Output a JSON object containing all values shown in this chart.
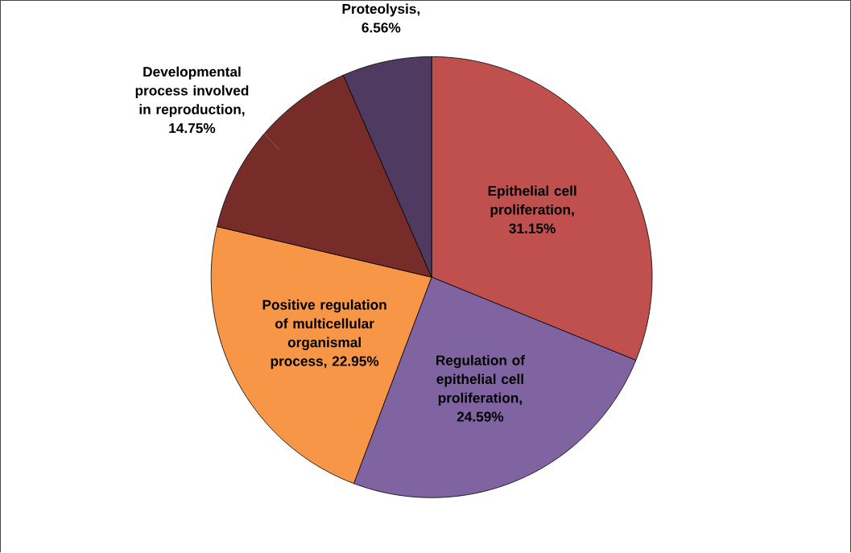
{
  "chart_data": {
    "type": "pie",
    "categories": [
      "Epithelial cell proliferation",
      "Regulation of epithelial cell proliferation",
      "Positive regulation of multicellular organismal process",
      "Developmental process involved in reproduction",
      "Proteolysis"
    ],
    "values": [
      31.15,
      24.59,
      22.95,
      14.75,
      6.56
    ],
    "colors": [
      "#c0504d",
      "#8064a2",
      "#f79646",
      "#772c2a",
      "#4f3b62"
    ],
    "value_labels": [
      ", 31.15%",
      ", 24.59%",
      ", 22.95%",
      ", 14.75%",
      ", 6.56%"
    ]
  }
}
